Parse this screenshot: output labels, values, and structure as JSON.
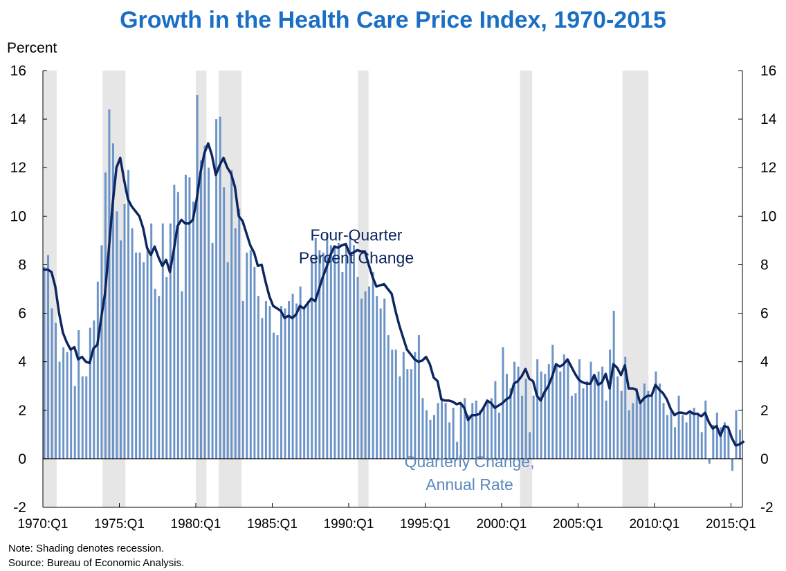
{
  "chart_data": {
    "type": "bar",
    "title": "Growth in the Health Care Price Index, 1970-2015",
    "ylabel": "Percent",
    "ylim": [
      -2,
      16
    ],
    "yticks": [
      -2,
      0,
      2,
      4,
      6,
      8,
      10,
      12,
      14,
      16
    ],
    "xlim": [
      1970.0,
      2015.75
    ],
    "xticks": [
      {
        "x": 1970,
        "label": "1970:Q1"
      },
      {
        "x": 1975,
        "label": "1975:Q1"
      },
      {
        "x": 1980,
        "label": "1980:Q1"
      },
      {
        "x": 1985,
        "label": "1985:Q1"
      },
      {
        "x": 1990,
        "label": "1990:Q1"
      },
      {
        "x": 1995,
        "label": "1995:Q1"
      },
      {
        "x": 2000,
        "label": "2000:Q1"
      },
      {
        "x": 2005,
        "label": "2005:Q1"
      },
      {
        "x": 2010,
        "label": "2010:Q1"
      },
      {
        "x": 2015,
        "label": "2015:Q1"
      }
    ],
    "recessions": [
      [
        1970.0,
        1970.9
      ],
      [
        1973.9,
        1975.4
      ],
      [
        1980.0,
        1980.7
      ],
      [
        1981.5,
        1983.0
      ],
      [
        1990.6,
        1991.3
      ],
      [
        2001.2,
        2002.0
      ],
      [
        2007.9,
        2009.6
      ]
    ],
    "series": [
      {
        "name": "Quarterly Change, Annual Rate",
        "kind": "bar",
        "color": "#6d94c8",
        "values": [
          7.9,
          8.4,
          6.2,
          5.6,
          4.0,
          4.6,
          4.4,
          4.5,
          3.0,
          5.3,
          3.4,
          3.4,
          5.4,
          5.7,
          7.3,
          8.8,
          11.8,
          14.4,
          13.0,
          10.2,
          9.0,
          10.5,
          11.9,
          9.5,
          8.5,
          8.5,
          8.1,
          8.7,
          9.7,
          7.0,
          6.7,
          9.7,
          7.5,
          9.7,
          11.3,
          11.0,
          6.9,
          11.7,
          11.6,
          10.6,
          15.0,
          12.3,
          12.9,
          12.0,
          8.9,
          14.0,
          14.1,
          11.2,
          8.1,
          11.9,
          9.5,
          10.3,
          6.5,
          8.5,
          8.6,
          7.9,
          6.7,
          5.8,
          6.5,
          6.3,
          5.2,
          5.1,
          6.3,
          6.2,
          6.5,
          6.8,
          6.4,
          7.1,
          6.2,
          6.5,
          8.2,
          9.1,
          8.6,
          8.5,
          9.3,
          8.8,
          8.8,
          8.9,
          7.7,
          8.8,
          9.2,
          8.8,
          7.5,
          6.6,
          6.9,
          7.1,
          7.7,
          6.7,
          6.2,
          6.6,
          5.1,
          4.5,
          4.5,
          3.4,
          4.4,
          3.7,
          3.7,
          4.4,
          5.1,
          2.5,
          2.0,
          1.6,
          1.8,
          2.3,
          2.5,
          2.3,
          1.5,
          2.1,
          0.7,
          2.3,
          2.5,
          1.8,
          2.3,
          2.4,
          2.0,
          2.2,
          2.4,
          2.5,
          3.2,
          1.9,
          4.6,
          3.5,
          2.9,
          4.0,
          3.8,
          2.6,
          3.3,
          1.1,
          2.6,
          4.1,
          3.6,
          3.5,
          3.9,
          4.7,
          3.9,
          3.6,
          4.3,
          4.0,
          2.6,
          2.7,
          4.1,
          2.9,
          3.2,
          4.0,
          3.3,
          3.6,
          3.8,
          2.4,
          4.5,
          6.1,
          3.4,
          2.8,
          4.2,
          2.0,
          2.3,
          2.9,
          2.4,
          3.1,
          2.8,
          2.6,
          3.6,
          3.1,
          2.3,
          1.8,
          2.0,
          1.3,
          2.6,
          1.8,
          1.5,
          2.0,
          2.1,
          1.9,
          1.1,
          2.4,
          -0.2,
          1.4,
          1.9,
          1.3,
          1.5,
          1.2,
          -0.5,
          2.0,
          1.2
        ]
      },
      {
        "name": "Four-Quarter Percent Change",
        "kind": "line",
        "color": "#0d2660",
        "points": [
          [
            1970.0,
            7.8
          ],
          [
            1970.25,
            7.8
          ],
          [
            1970.5,
            7.7
          ],
          [
            1970.75,
            7.1
          ],
          [
            1971.0,
            6.0
          ],
          [
            1971.25,
            5.2
          ],
          [
            1971.5,
            4.8
          ],
          [
            1971.75,
            4.5
          ],
          [
            1972.0,
            4.6
          ],
          [
            1972.25,
            4.1
          ],
          [
            1972.5,
            4.2
          ],
          [
            1972.75,
            4.0
          ],
          [
            1973.0,
            3.95
          ],
          [
            1973.25,
            4.55
          ],
          [
            1973.5,
            4.7
          ],
          [
            1973.75,
            5.8
          ],
          [
            1974.0,
            6.8
          ],
          [
            1974.25,
            8.6
          ],
          [
            1974.5,
            10.5
          ],
          [
            1974.75,
            12.0
          ],
          [
            1975.0,
            12.4
          ],
          [
            1975.25,
            11.5
          ],
          [
            1975.5,
            10.7
          ],
          [
            1975.75,
            10.4
          ],
          [
            1976.0,
            10.2
          ],
          [
            1976.25,
            10.0
          ],
          [
            1976.5,
            9.5
          ],
          [
            1976.75,
            8.7
          ],
          [
            1977.0,
            8.4
          ],
          [
            1977.25,
            8.75
          ],
          [
            1977.5,
            8.3
          ],
          [
            1977.75,
            7.95
          ],
          [
            1978.0,
            8.2
          ],
          [
            1978.25,
            7.7
          ],
          [
            1978.5,
            8.6
          ],
          [
            1978.75,
            9.6
          ],
          [
            1979.0,
            9.85
          ],
          [
            1979.25,
            9.7
          ],
          [
            1979.5,
            9.7
          ],
          [
            1979.75,
            9.85
          ],
          [
            1980.0,
            10.7
          ],
          [
            1980.25,
            11.8
          ],
          [
            1980.5,
            12.6
          ],
          [
            1980.75,
            13.0
          ],
          [
            1981.0,
            12.5
          ],
          [
            1981.25,
            11.7
          ],
          [
            1981.5,
            12.1
          ],
          [
            1981.75,
            12.4
          ],
          [
            1982.0,
            12.0
          ],
          [
            1982.25,
            11.75
          ],
          [
            1982.5,
            11.2
          ],
          [
            1982.75,
            10.0
          ],
          [
            1983.0,
            9.8
          ],
          [
            1983.25,
            9.3
          ],
          [
            1983.5,
            8.8
          ],
          [
            1983.75,
            8.5
          ],
          [
            1984.0,
            7.95
          ],
          [
            1984.25,
            8.0
          ],
          [
            1984.5,
            7.3
          ],
          [
            1984.75,
            6.7
          ],
          [
            1985.0,
            6.3
          ],
          [
            1985.25,
            6.2
          ],
          [
            1985.5,
            6.1
          ],
          [
            1985.75,
            5.8
          ],
          [
            1986.0,
            5.9
          ],
          [
            1986.25,
            5.8
          ],
          [
            1986.5,
            5.95
          ],
          [
            1986.75,
            6.3
          ],
          [
            1987.0,
            6.2
          ],
          [
            1987.25,
            6.4
          ],
          [
            1987.5,
            6.6
          ],
          [
            1987.75,
            6.5
          ],
          [
            1988.0,
            7.0
          ],
          [
            1988.25,
            7.5
          ],
          [
            1988.5,
            7.9
          ],
          [
            1988.75,
            8.4
          ],
          [
            1989.0,
            8.75
          ],
          [
            1989.25,
            8.7
          ],
          [
            1989.5,
            8.8
          ],
          [
            1989.75,
            8.85
          ],
          [
            1990.0,
            8.45
          ],
          [
            1990.25,
            8.5
          ],
          [
            1990.5,
            8.6
          ],
          [
            1990.75,
            8.55
          ],
          [
            1991.0,
            8.55
          ],
          [
            1991.25,
            8.0
          ],
          [
            1991.5,
            7.5
          ],
          [
            1991.75,
            7.1
          ],
          [
            1992.0,
            7.15
          ],
          [
            1992.25,
            7.2
          ],
          [
            1992.5,
            7.0
          ],
          [
            1992.75,
            6.8
          ],
          [
            1993.0,
            6.1
          ],
          [
            1993.25,
            5.5
          ],
          [
            1993.5,
            5.0
          ],
          [
            1993.75,
            4.5
          ],
          [
            1994.0,
            4.3
          ],
          [
            1994.25,
            4.1
          ],
          [
            1994.5,
            4.0
          ],
          [
            1994.75,
            4.05
          ],
          [
            1995.0,
            4.2
          ],
          [
            1995.25,
            3.9
          ],
          [
            1995.5,
            3.35
          ],
          [
            1995.75,
            3.2
          ],
          [
            1996.0,
            2.45
          ],
          [
            1996.25,
            2.4
          ],
          [
            1996.5,
            2.4
          ],
          [
            1996.75,
            2.35
          ],
          [
            1997.0,
            2.25
          ],
          [
            1997.25,
            2.3
          ],
          [
            1997.5,
            2.1
          ],
          [
            1997.75,
            1.6
          ],
          [
            1998.0,
            1.8
          ],
          [
            1998.25,
            1.8
          ],
          [
            1998.5,
            1.85
          ],
          [
            1998.75,
            2.1
          ],
          [
            1999.0,
            2.4
          ],
          [
            1999.25,
            2.3
          ],
          [
            1999.5,
            2.1
          ],
          [
            1999.75,
            2.2
          ],
          [
            2000.0,
            2.3
          ],
          [
            2000.25,
            2.45
          ],
          [
            2000.5,
            2.55
          ],
          [
            2000.75,
            3.1
          ],
          [
            2001.0,
            3.2
          ],
          [
            2001.25,
            3.4
          ],
          [
            2001.5,
            3.7
          ],
          [
            2001.75,
            3.3
          ],
          [
            2002.0,
            3.2
          ],
          [
            2002.25,
            2.6
          ],
          [
            2002.5,
            2.4
          ],
          [
            2002.75,
            2.75
          ],
          [
            2003.0,
            3.0
          ],
          [
            2003.25,
            3.4
          ],
          [
            2003.5,
            3.9
          ],
          [
            2003.75,
            3.8
          ],
          [
            2004.0,
            3.9
          ],
          [
            2004.25,
            4.1
          ],
          [
            2004.5,
            3.8
          ],
          [
            2004.75,
            3.5
          ],
          [
            2005.0,
            3.25
          ],
          [
            2005.25,
            3.15
          ],
          [
            2005.5,
            3.1
          ],
          [
            2005.75,
            3.1
          ],
          [
            2006.0,
            3.45
          ],
          [
            2006.25,
            3.05
          ],
          [
            2006.5,
            3.15
          ],
          [
            2006.75,
            3.5
          ],
          [
            2007.0,
            2.9
          ],
          [
            2007.25,
            3.9
          ],
          [
            2007.5,
            3.75
          ],
          [
            2007.75,
            3.45
          ],
          [
            2008.0,
            3.85
          ],
          [
            2008.25,
            2.9
          ],
          [
            2008.5,
            2.9
          ],
          [
            2008.75,
            2.85
          ],
          [
            2009.0,
            2.3
          ],
          [
            2009.25,
            2.5
          ],
          [
            2009.5,
            2.6
          ],
          [
            2009.75,
            2.6
          ],
          [
            2010.0,
            3.05
          ],
          [
            2010.25,
            2.85
          ],
          [
            2010.5,
            2.7
          ],
          [
            2010.75,
            2.45
          ],
          [
            2011.0,
            2.05
          ],
          [
            2011.25,
            1.8
          ],
          [
            2011.5,
            1.9
          ],
          [
            2011.75,
            1.9
          ],
          [
            2012.0,
            1.85
          ],
          [
            2012.25,
            1.95
          ],
          [
            2012.5,
            1.85
          ],
          [
            2012.75,
            1.85
          ],
          [
            2013.0,
            1.75
          ],
          [
            2013.25,
            1.9
          ],
          [
            2013.5,
            1.5
          ],
          [
            2013.75,
            1.25
          ],
          [
            2014.0,
            1.35
          ],
          [
            2014.25,
            0.95
          ],
          [
            2014.5,
            1.35
          ],
          [
            2014.75,
            1.3
          ],
          [
            2015.0,
            0.85
          ],
          [
            2015.25,
            0.55
          ],
          [
            2015.5,
            0.6
          ],
          [
            2015.75,
            0.7
          ]
        ]
      }
    ],
    "annotations": [
      {
        "lines": [
          "Four-Quarter",
          "Percent Change"
        ],
        "x": 1990.5,
        "y": 9.0,
        "color": "#0d2660"
      },
      {
        "lines": [
          "Quarterly Change,",
          "Annual Rate"
        ],
        "x": 1997.9,
        "y": -0.35,
        "color": "#5b87c0"
      }
    ],
    "legend": "none",
    "grid": false
  },
  "notes": {
    "note": "Note: Shading denotes recession.",
    "source": "Source: Bureau of Economic Analysis."
  }
}
